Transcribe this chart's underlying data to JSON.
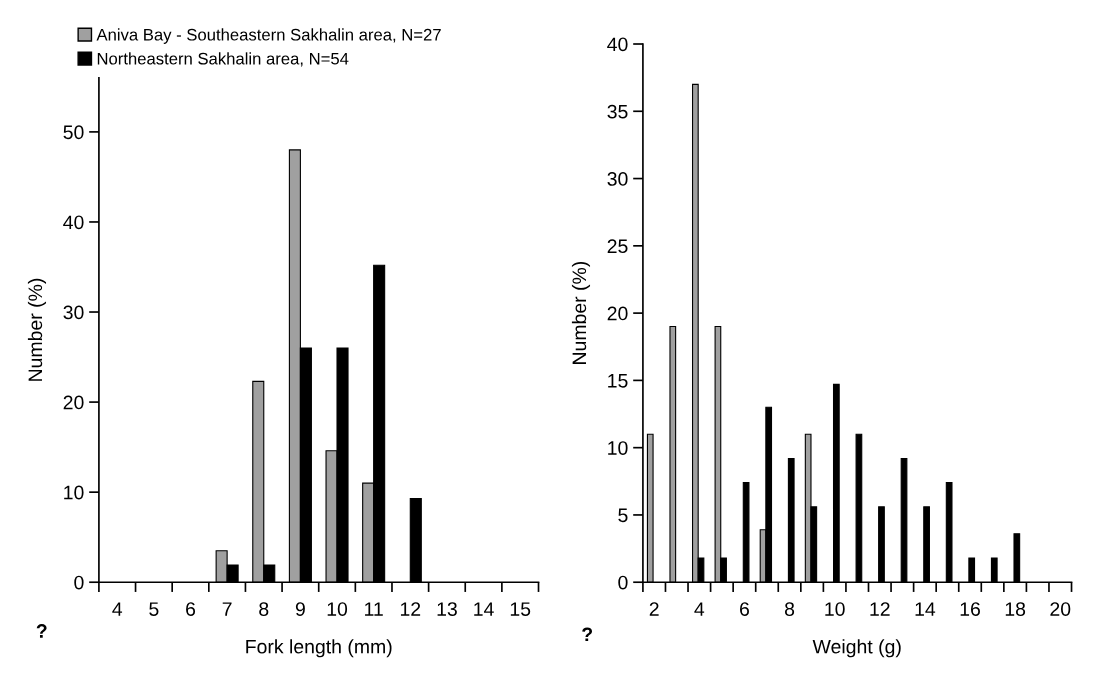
{
  "chart_data": [
    {
      "type": "bar",
      "xlabel": "Fork length (mm)",
      "ylabel": "Number (%)",
      "categories": [
        "4",
        "5",
        "6",
        "7",
        "8",
        "9",
        "10",
        "11",
        "12",
        "13",
        "14",
        "15"
      ],
      "series": [
        {
          "name": "Aniva Bay - Southeastern Sakhalin area, N=27",
          "color": "#a0a0a0",
          "values": [
            null,
            null,
            null,
            3.5,
            22.3,
            48,
            14.6,
            11,
            null,
            null,
            null,
            null
          ]
        },
        {
          "name": "Northeastern Sakhalin area, N=54",
          "color": "#000000",
          "values": [
            null,
            null,
            null,
            1.9,
            1.9,
            26,
            26,
            35.2,
            9.3,
            null,
            null,
            null
          ]
        }
      ],
      "ylim": [
        0,
        56
      ],
      "yticks": [
        0,
        10,
        20,
        30,
        40,
        50
      ],
      "legend": "top",
      "grid": false,
      "annotations": [
        "?"
      ]
    },
    {
      "type": "bar",
      "xlabel": "Weight (g)",
      "ylabel": "Number (%)",
      "categories": [
        "2",
        null,
        "4",
        null,
        "6",
        null,
        "8",
        null,
        "10",
        null,
        "12",
        null,
        "14",
        null,
        "16",
        null,
        "18",
        null,
        "20"
      ],
      "series": [
        {
          "color": "#a0a0a0",
          "values": [
            11,
            19,
            37,
            19,
            null,
            3.9,
            null,
            11,
            null,
            null,
            null,
            null,
            null,
            null,
            null,
            null,
            null,
            null,
            null
          ]
        },
        {
          "color": "#000000",
          "values": [
            null,
            null,
            1.8,
            1.8,
            7.4,
            13,
            9.2,
            5.6,
            14.7,
            11,
            5.6,
            9.2,
            5.6,
            7.4,
            1.8,
            1.8,
            3.6,
            null,
            null
          ]
        }
      ],
      "ylim": [
        0,
        40
      ],
      "yticks": [
        0,
        5,
        10,
        15,
        20,
        25,
        30,
        35,
        40
      ],
      "grid": false,
      "annotations": [
        "?"
      ]
    }
  ]
}
